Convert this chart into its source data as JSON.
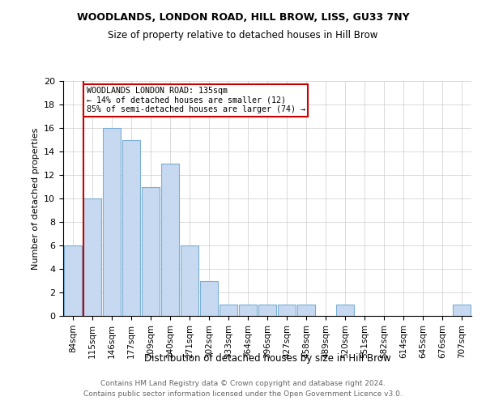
{
  "title1": "WOODLANDS, LONDON ROAD, HILL BROW, LISS, GU33 7NY",
  "title2": "Size of property relative to detached houses in Hill Brow",
  "xlabel": "Distribution of detached houses by size in Hill Brow",
  "ylabel": "Number of detached properties",
  "footnote1": "Contains HM Land Registry data © Crown copyright and database right 2024.",
  "footnote2": "Contains public sector information licensed under the Open Government Licence v3.0.",
  "categories": [
    "84sqm",
    "115sqm",
    "146sqm",
    "177sqm",
    "209sqm",
    "240sqm",
    "271sqm",
    "302sqm",
    "333sqm",
    "364sqm",
    "396sqm",
    "427sqm",
    "458sqm",
    "489sqm",
    "520sqm",
    "551sqm",
    "582sqm",
    "614sqm",
    "645sqm",
    "676sqm",
    "707sqm"
  ],
  "values": [
    6,
    10,
    16,
    15,
    11,
    13,
    6,
    3,
    1,
    1,
    1,
    1,
    1,
    0,
    1,
    0,
    0,
    0,
    0,
    0,
    1
  ],
  "bar_color": "#c6d9f0",
  "bar_edge_color": "#7aafd4",
  "subject_line_color": "#cc0000",
  "annotation_text": "WOODLANDS LONDON ROAD: 135sqm\n← 14% of detached houses are smaller (12)\n85% of semi-detached houses are larger (74) →",
  "annotation_box_color": "#ffffff",
  "annotation_box_edge_color": "#cc0000",
  "ylim": [
    0,
    20
  ],
  "yticks": [
    0,
    2,
    4,
    6,
    8,
    10,
    12,
    14,
    16,
    18,
    20
  ],
  "background_color": "#ffffff",
  "grid_color": "#cccccc",
  "title1_fontsize": 9,
  "title2_fontsize": 8.5,
  "footnote_fontsize": 6.5,
  "footnote_color": "#666666"
}
